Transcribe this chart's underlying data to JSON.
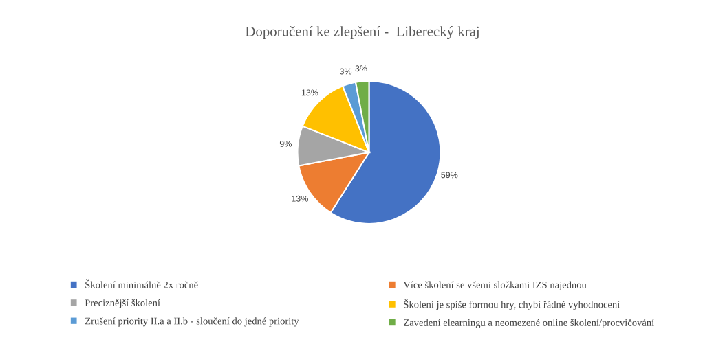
{
  "chart_data": {
    "type": "pie",
    "title": "Doporučení ke zlepšení -  Liberecký kraj",
    "categories": [
      "Školení minimálně 2x ročně",
      "Více školení se všemi složkami IZS najednou",
      "Preciznější školení",
      "Školení je spíše formou hry, chybí řádné vyhodnocení",
      "Zrušení priority II.a a II.b - sloučení do jedné priority",
      "Zavedení elearningu a neomezené online školení/procvičování"
    ],
    "values": [
      59,
      13,
      9,
      13,
      3,
      3
    ],
    "colors": [
      "#4472c4",
      "#ed7d31",
      "#a5a5a5",
      "#ffc000",
      "#5b9bd5",
      "#70ad47"
    ],
    "value_labels": [
      "59%",
      "13%",
      "9%",
      "13%",
      "3%",
      "3%"
    ],
    "legend": "bottom"
  }
}
